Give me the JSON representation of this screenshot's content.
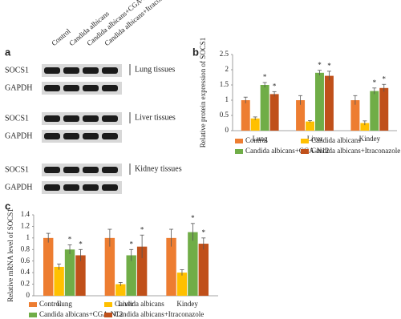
{
  "blot": {
    "letter": "a",
    "columns": [
      "Control",
      "Candida albicans",
      "Candida albicans+CGA-N12",
      "Candida albicans+Itraconazole"
    ],
    "groups": [
      {
        "rows": [
          "SOCS1",
          "GAPDH"
        ],
        "tissue": "Lung tissues"
      },
      {
        "rows": [
          "SOCS1",
          "GAPDH"
        ],
        "tissue": "Liver tissues"
      },
      {
        "rows": [
          "SOCS1",
          "GAPDH"
        ],
        "tissue": "Kidney tissues"
      }
    ]
  },
  "chart_data": [
    {
      "type": "bar",
      "letter": "b",
      "y_label": "Relative protein expression of SOCS1",
      "categories": [
        "Lung",
        "Liver",
        "Kindey"
      ],
      "series": [
        {
          "name": "Control",
          "color": "#ed7d31",
          "values": [
            1.0,
            1.0,
            1.0
          ],
          "errors": [
            0.1,
            0.15,
            0.15
          ]
        },
        {
          "name": "Candida albicans",
          "color": "#ffc000",
          "values": [
            0.4,
            0.3,
            0.25
          ],
          "errors": [
            0.05,
            0.03,
            0.07
          ]
        },
        {
          "name": "Candida albicans+CGA-N12",
          "color": "#70ad47",
          "values": [
            1.5,
            1.9,
            1.3
          ],
          "errors": [
            0.08,
            0.08,
            0.1
          ],
          "annotations": [
            "*",
            "*",
            "*"
          ]
        },
        {
          "name": "Candida albicans+Itraconazole",
          "color": "#c0501a",
          "values": [
            1.2,
            1.8,
            1.4
          ],
          "errors": [
            0.08,
            0.15,
            0.12
          ],
          "annotations": [
            "*",
            "*",
            "*"
          ]
        }
      ],
      "ylim": [
        0,
        2.5
      ],
      "yticks": [
        0,
        0.5,
        1,
        1.5,
        2,
        2.5
      ],
      "legend": "bottom"
    },
    {
      "type": "bar",
      "letter": "c",
      "y_label": "Relative mRNA level of SOCS1",
      "categories": [
        "Lung",
        "Liver",
        "Kindey"
      ],
      "series": [
        {
          "name": "Control",
          "color": "#ed7d31",
          "values": [
            1.0,
            1.0,
            1.0
          ],
          "errors": [
            0.08,
            0.15,
            0.15
          ]
        },
        {
          "name": "Candida albicans",
          "color": "#ffc000",
          "values": [
            0.5,
            0.2,
            0.4
          ],
          "errors": [
            0.05,
            0.03,
            0.05
          ]
        },
        {
          "name": "Candida albicans+CGA-N12",
          "color": "#70ad47",
          "values": [
            0.8,
            0.7,
            1.1
          ],
          "errors": [
            0.08,
            0.1,
            0.15
          ],
          "annotations": [
            "*",
            "*",
            "*"
          ]
        },
        {
          "name": "Candida albicans+Itraconazole",
          "color": "#c0501a",
          "values": [
            0.7,
            0.85,
            0.9
          ],
          "errors": [
            0.1,
            0.2,
            0.1
          ],
          "annotations": [
            "*",
            "*",
            "*"
          ]
        }
      ],
      "ylim": [
        0,
        1.4
      ],
      "yticks": [
        0,
        0.2,
        0.4,
        0.6,
        0.8,
        1,
        1.2,
        1.4
      ],
      "legend": "bottom"
    }
  ]
}
